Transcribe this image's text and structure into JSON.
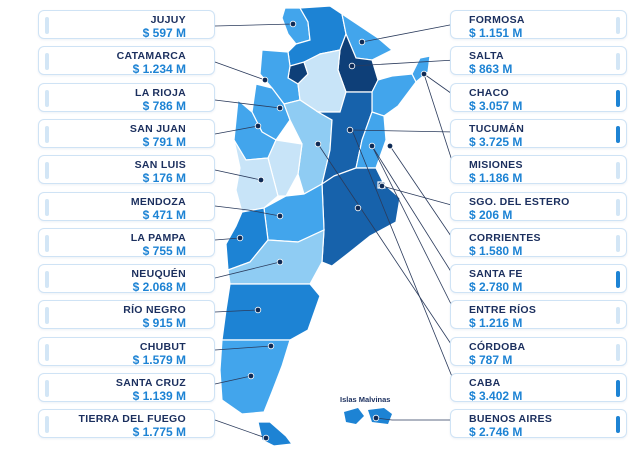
{
  "colors": {
    "very_light": "#c8e4f8",
    "light": "#8fccf3",
    "medium": "#42a5ec",
    "strong": "#1d83d4",
    "dark": "#1762ab",
    "darkest": "#0e3f78",
    "card_bar": "#d3e6f6",
    "card_bar_accent": "#1d83d4",
    "text_dark": "#1b2f5e"
  },
  "map": {
    "malvinas_label": "Islas Malvinas"
  },
  "provinces_left": [
    {
      "id": "jujuy",
      "name": "JUJUY",
      "value": "$ 597 M",
      "accent": false
    },
    {
      "id": "catamarca",
      "name": "CATAMARCA",
      "value": "$ 1.234 M",
      "accent": false
    },
    {
      "id": "la-rioja",
      "name": "LA RIOJA",
      "value": "$ 786 M",
      "accent": false
    },
    {
      "id": "san-juan",
      "name": "SAN JUAN",
      "value": "$ 791 M",
      "accent": false
    },
    {
      "id": "san-luis",
      "name": "SAN LUIS",
      "value": "$ 176 M",
      "accent": false
    },
    {
      "id": "mendoza",
      "name": "MENDOZA",
      "value": "$ 471 M",
      "accent": false
    },
    {
      "id": "la-pampa",
      "name": "LA PAMPA",
      "value": "$ 755 M",
      "accent": false
    },
    {
      "id": "neuquen",
      "name": "NEUQUÉN",
      "value": "$ 2.068 M",
      "accent": false
    },
    {
      "id": "rio-negro",
      "name": "RÍO NEGRO",
      "value": "$ 915 M",
      "accent": false
    },
    {
      "id": "chubut",
      "name": "CHUBUT",
      "value": "$ 1.579 M",
      "accent": false
    },
    {
      "id": "santa-cruz",
      "name": "SANTA CRUZ",
      "value": "$ 1.139 M",
      "accent": false
    },
    {
      "id": "tierra-del-fuego",
      "name": "TIERRA DEL FUEGO",
      "value": "$ 1.775 M",
      "accent": false
    }
  ],
  "provinces_right": [
    {
      "id": "formosa",
      "name": "FORMOSA",
      "value": "$ 1.151 M",
      "accent": false
    },
    {
      "id": "salta",
      "name": "SALTA",
      "value": "$ 863 M",
      "accent": false
    },
    {
      "id": "chaco",
      "name": "CHACO",
      "value": "$ 3.057 M",
      "accent": true
    },
    {
      "id": "tucuman",
      "name": "TUCUMÁN",
      "value": "$ 3.725 M",
      "accent": true
    },
    {
      "id": "misiones",
      "name": "MISIONES",
      "value": "$ 1.186 M",
      "accent": false
    },
    {
      "id": "sgo-del-estero",
      "name": "SGO. DEL ESTERO",
      "value": "$ 206 M",
      "accent": false
    },
    {
      "id": "corrientes",
      "name": "CORRIENTES",
      "value": "$ 1.580 M",
      "accent": false
    },
    {
      "id": "santa-fe",
      "name": "SANTA FE",
      "value": "$ 2.780 M",
      "accent": true
    },
    {
      "id": "entre-rios",
      "name": "ENTRE RÍOS",
      "value": "$ 1.216 M",
      "accent": false
    },
    {
      "id": "cordoba",
      "name": "CÓRDOBA",
      "value": "$ 787 M",
      "accent": false
    },
    {
      "id": "caba",
      "name": "CABA",
      "value": "$ 3.402 M",
      "accent": true
    },
    {
      "id": "buenos-aires",
      "name": "BUENOS AIRES",
      "value": "$ 2.746 M",
      "accent": true
    }
  ]
}
